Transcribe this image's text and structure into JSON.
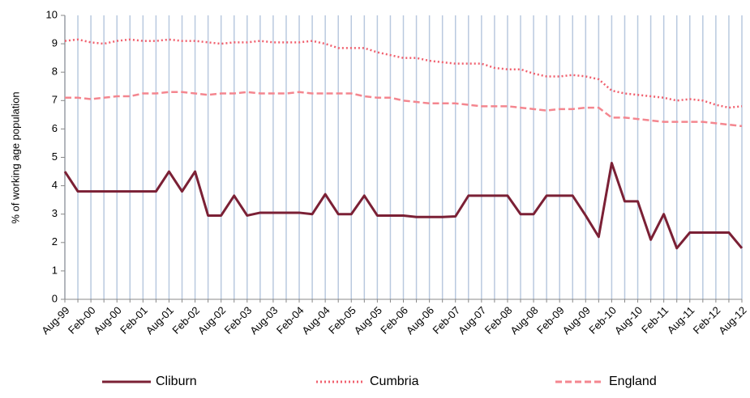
{
  "chart_data": {
    "type": "line",
    "y_label": "% of working age population",
    "categories": [
      "Aug-99",
      null,
      "Feb-00",
      null,
      "Aug-00",
      null,
      "Feb-01",
      null,
      "Aug-01",
      null,
      "Feb-02",
      null,
      "Aug-02",
      null,
      "Feb-03",
      null,
      "Aug-03",
      null,
      "Feb-04",
      null,
      "Aug-04",
      null,
      "Feb-05",
      null,
      "Aug-05",
      null,
      "Feb-06",
      null,
      "Aug-06",
      null,
      "Feb-07",
      null,
      "Aug-07",
      null,
      "Feb-08",
      null,
      "Aug-08",
      null,
      "Feb-09",
      null,
      "Aug-09",
      null,
      "Feb-10",
      null,
      "Aug-10",
      null,
      "Feb-11",
      null,
      "Aug-11",
      null,
      "Feb-12",
      null,
      "Aug-12"
    ],
    "series": [
      {
        "name": "Cliburn",
        "color": "#7b2035",
        "dash": "solid",
        "values": [
          4.5,
          3.8,
          3.8,
          3.8,
          3.8,
          3.8,
          3.8,
          3.8,
          4.5,
          3.8,
          4.5,
          2.95,
          2.95,
          3.65,
          2.95,
          3.05,
          3.05,
          3.05,
          3.05,
          3.0,
          3.7,
          3.0,
          3.0,
          3.65,
          2.95,
          2.95,
          2.95,
          2.9,
          2.9,
          2.9,
          2.92,
          3.65,
          3.65,
          3.65,
          3.65,
          3.0,
          3.0,
          3.65,
          3.65,
          3.65,
          2.95,
          2.2,
          4.8,
          3.45,
          3.45,
          2.1,
          3.0,
          1.8,
          2.35,
          2.35,
          2.35,
          2.35,
          1.8
        ]
      },
      {
        "name": "Cumbria",
        "color": "#f0606e",
        "dash": "dotted",
        "values": [
          9.1,
          9.15,
          9.05,
          9.0,
          9.1,
          9.15,
          9.1,
          9.1,
          9.15,
          9.1,
          9.1,
          9.05,
          9.0,
          9.05,
          9.05,
          9.1,
          9.05,
          9.05,
          9.05,
          9.1,
          9.0,
          8.85,
          8.85,
          8.85,
          8.7,
          8.6,
          8.5,
          8.5,
          8.4,
          8.35,
          8.3,
          8.3,
          8.3,
          8.15,
          8.1,
          8.1,
          7.95,
          7.85,
          7.85,
          7.9,
          7.85,
          7.75,
          7.35,
          7.25,
          7.2,
          7.15,
          7.1,
          7.0,
          7.05,
          7.0,
          6.85,
          6.75,
          6.8
        ]
      },
      {
        "name": "England",
        "color": "#f4868f",
        "dash": "dashed",
        "values": [
          7.1,
          7.1,
          7.05,
          7.1,
          7.15,
          7.15,
          7.25,
          7.25,
          7.3,
          7.3,
          7.25,
          7.2,
          7.25,
          7.25,
          7.3,
          7.25,
          7.25,
          7.25,
          7.3,
          7.25,
          7.25,
          7.25,
          7.25,
          7.15,
          7.1,
          7.1,
          7.0,
          6.95,
          6.9,
          6.9,
          6.9,
          6.85,
          6.8,
          6.8,
          6.8,
          6.75,
          6.7,
          6.65,
          6.7,
          6.7,
          6.75,
          6.75,
          6.4,
          6.4,
          6.35,
          6.3,
          6.25,
          6.25,
          6.25,
          6.25,
          6.2,
          6.15,
          6.1
        ]
      }
    ],
    "ylim": [
      0,
      10
    ],
    "yticks": [
      0,
      1,
      2,
      3,
      4,
      5,
      6,
      7,
      8,
      9,
      10
    ],
    "grid": "x",
    "grid_color": "#b9c9df",
    "legend": "bottom"
  }
}
